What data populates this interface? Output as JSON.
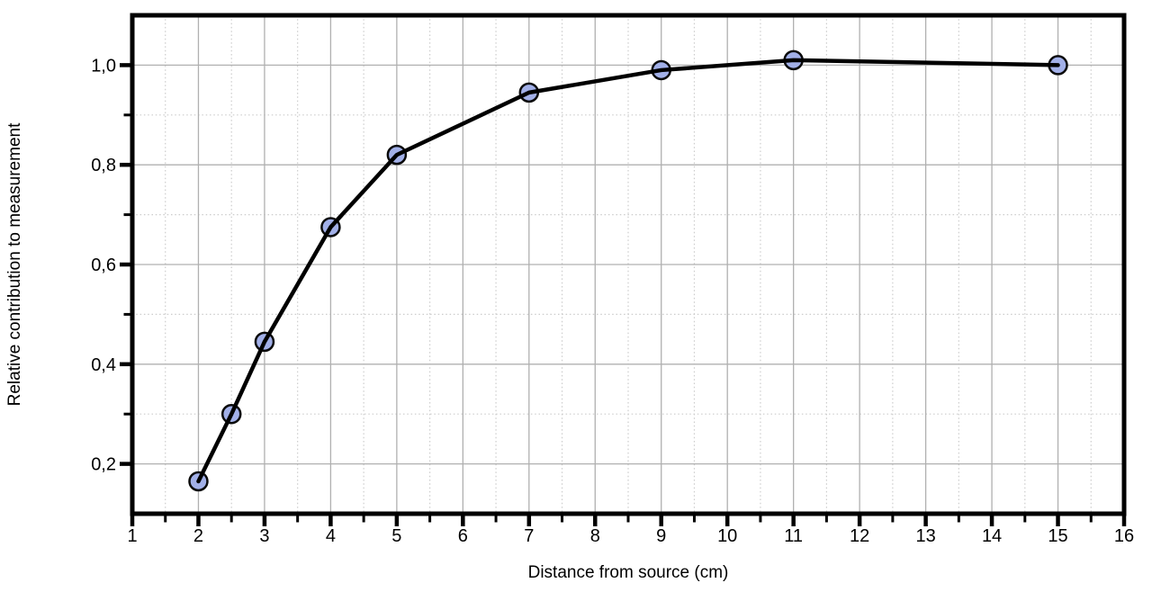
{
  "chart_data": {
    "type": "line",
    "title": "",
    "xlabel": "Distance from source (cm)",
    "ylabel": "Relative contribution to measurement",
    "x": [
      2,
      2.5,
      3,
      4,
      5,
      7,
      9,
      11,
      15
    ],
    "y": [
      0.165,
      0.3,
      0.445,
      0.675,
      0.82,
      0.945,
      0.99,
      1.01,
      1.0
    ],
    "xlim": [
      1,
      16
    ],
    "ylim": [
      0.1,
      1.1
    ],
    "x_tick_values": [
      1,
      2,
      3,
      4,
      5,
      6,
      7,
      8,
      9,
      10,
      11,
      12,
      13,
      14,
      15,
      16
    ],
    "x_tick_labels": [
      "1",
      "2",
      "3",
      "4",
      "5",
      "6",
      "7",
      "8",
      "9",
      "10",
      "11",
      "12",
      "13",
      "14",
      "15",
      "16"
    ],
    "x_minor_tick_values": [
      1.5,
      2.5,
      3.5,
      4.5,
      5.5,
      6.5,
      7.5,
      8.5,
      9.5,
      10.5,
      11.5,
      12.5,
      13.5,
      14.5,
      15.5
    ],
    "y_tick_values": [
      0.2,
      0.4,
      0.6,
      0.8,
      1.0
    ],
    "y_tick_labels": [
      "0,2",
      "0,4",
      "0,6",
      "0,8",
      "1,0"
    ],
    "y_minor_tick_values": [
      0.3,
      0.5,
      0.7,
      0.9
    ],
    "decimal_separator": ",",
    "grid": {
      "major_solid": true,
      "minor_dotted": true
    },
    "legend": null,
    "colors": {
      "line": "#000000",
      "marker_fill": "#a2b0e8",
      "marker_stroke": "#0a0a0a",
      "grid_major": "#b0b0b0",
      "grid_minor": "#cccccc",
      "frame": "#000000",
      "text": "#000000",
      "background": "#ffffff"
    }
  }
}
